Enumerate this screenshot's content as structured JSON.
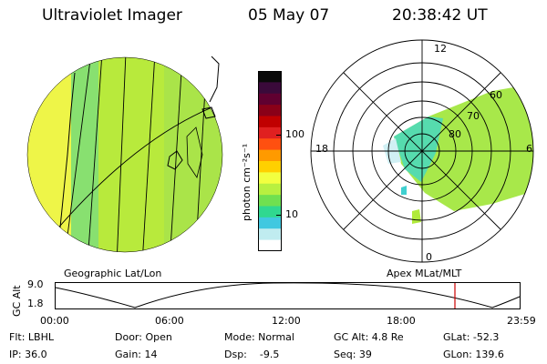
{
  "header": {
    "instrument": "Ultraviolet Imager",
    "date": "05 May 07",
    "time": "20:38:42 UT"
  },
  "colorbar": {
    "unit_label": "photon cm⁻²s⁻¹",
    "tick_high": "100",
    "tick_low": "10",
    "scale": "log",
    "colors": [
      "#0a0a0a",
      "#3a0a3a",
      "#600030",
      "#8a0018",
      "#c00000",
      "#e02020",
      "#ff5010",
      "#ff9a00",
      "#ffd000",
      "#f2ff40",
      "#b8f040",
      "#70e050",
      "#30d890",
      "#40c8e0",
      "#c0ecf0",
      "#ffffff"
    ]
  },
  "left_panel": {
    "caption": "Geographic Lat/Lon"
  },
  "right_panel": {
    "caption": "Apex MLat/MLT",
    "mlt_labels": {
      "top": "12",
      "left": "18",
      "right": "6",
      "bottom": "0"
    },
    "lat_labels": [
      "60",
      "70",
      "80"
    ]
  },
  "altitude_plot": {
    "ylabel": "GC Alt",
    "y_ticks": [
      "9.0",
      "1.8"
    ],
    "x_ticks": [
      "00:00",
      "06:00",
      "12:00",
      "18:00",
      "23:59"
    ],
    "marker_color": "#cc0000"
  },
  "info_rows": [
    [
      "Flt: LBHL",
      "Door: Open",
      "Mode: Normal",
      "GC Alt: 4.8 Re",
      "GLat: -52.3"
    ],
    [
      "IP: 36.0",
      "Gain: 14",
      "Dsp:    -9.5",
      "Seq: 39",
      "GLon: 139.6"
    ]
  ]
}
